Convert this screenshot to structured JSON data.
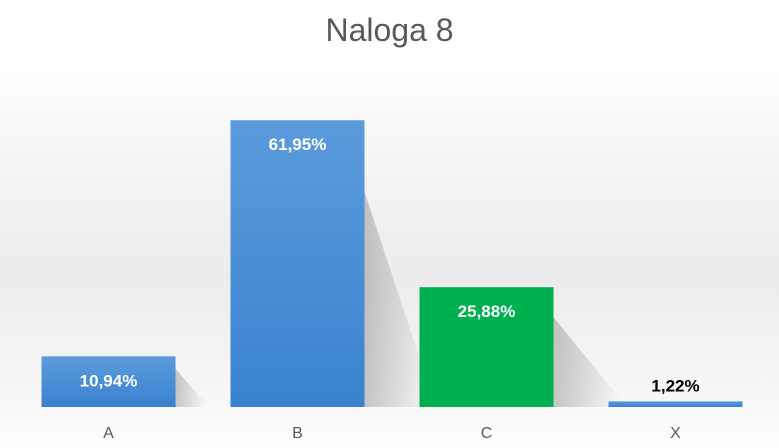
{
  "chart_data": {
    "type": "bar",
    "title": "Naloga 8",
    "categories": [
      "A",
      "B",
      "C",
      "X"
    ],
    "values": [
      10.94,
      61.95,
      25.88,
      1.22
    ],
    "value_labels": [
      "10,94%",
      "61,95%",
      "25,88%",
      "1,22%"
    ],
    "bar_colors": [
      "#4a8fd8",
      "#4a8fd8",
      "#00b050",
      "#4a8fd8"
    ],
    "label_colors": [
      "#ffffff",
      "#ffffff",
      "#ffffff",
      "#000000"
    ],
    "ylim": [
      0,
      62
    ],
    "grid": false,
    "legend": "none"
  }
}
